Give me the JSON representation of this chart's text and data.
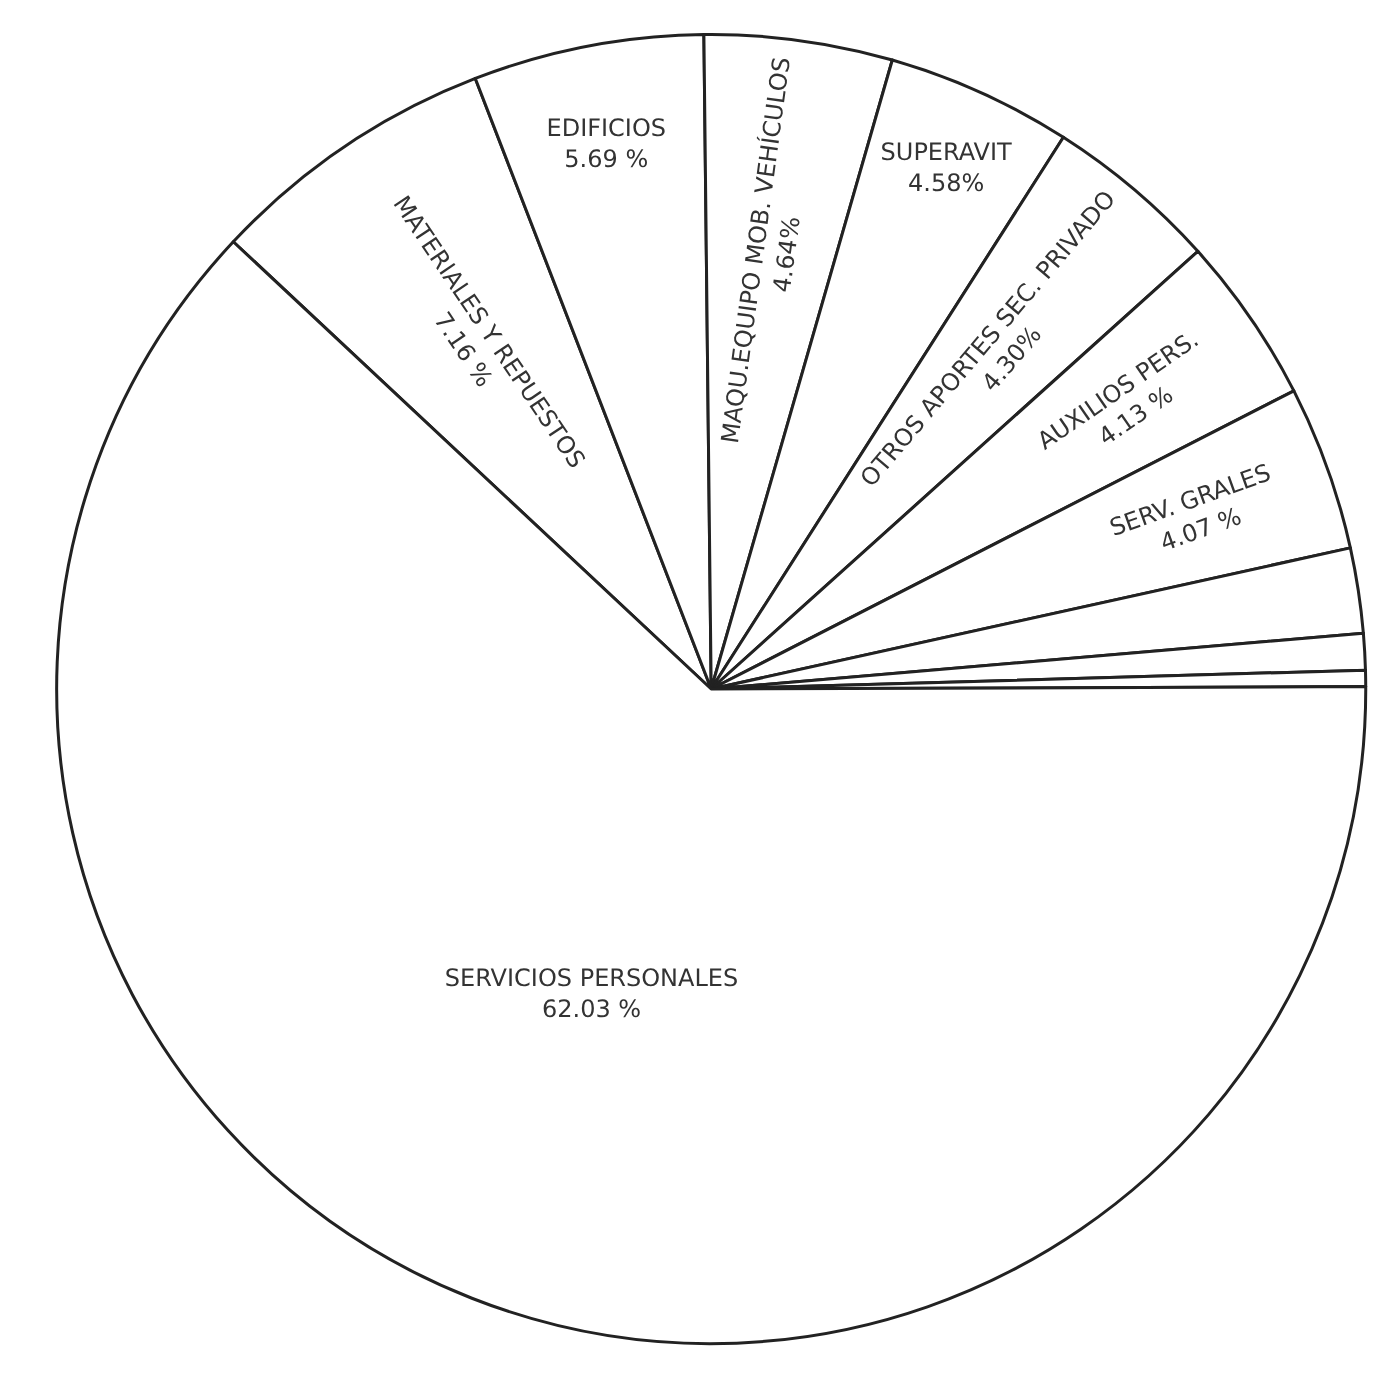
{
  "chart_data": {
    "type": "pie",
    "categories": [
      "MATERIALES Y REPUESTOS",
      "EDIFICIOS",
      "MAQU.EQUIPO MOB. VEHÍCULOS",
      "SUPERAVIT",
      "OTROS APORTES SEC. PRIVADO",
      "AUXILIOS PERS.",
      "SERV. GRALES",
      null,
      null,
      null,
      "SERVICIOS PERSONALES"
    ],
    "values": [
      7.16,
      5.69,
      4.64,
      4.58,
      4.3,
      4.13,
      4.07,
      2.1,
      0.9,
      0.4,
      62.03
    ],
    "value_labels": [
      "7.16 %",
      "5.69 %",
      "4.64%",
      "4.58%",
      "4.30%",
      "4.13 %",
      "4.07 %",
      null,
      null,
      null,
      "62.03 %"
    ],
    "colors": [
      "#ffffff",
      "#ffffff",
      "#ffffff",
      "#ffffff",
      "#ffffff",
      "#ffffff",
      "#ffffff",
      "#ffffff",
      "#ffffff",
      "#ffffff",
      "#ffffff"
    ],
    "legend": false
  }
}
